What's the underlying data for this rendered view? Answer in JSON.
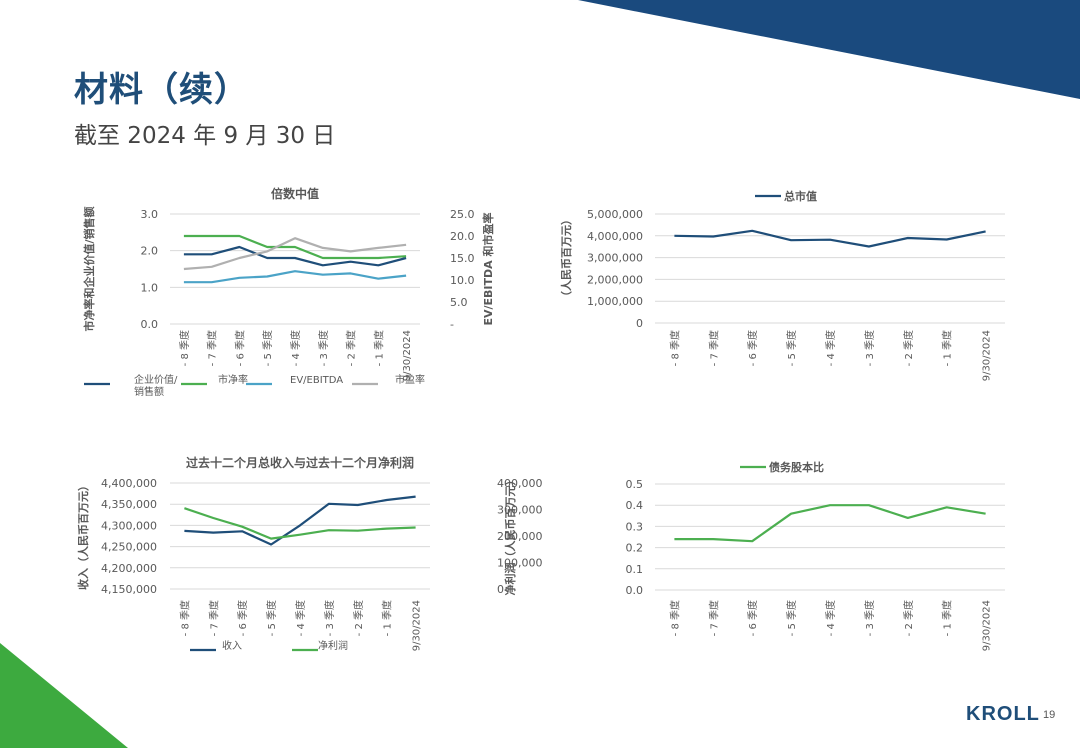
{
  "page": {
    "title": "材料（续）",
    "subtitle": "截至 2024 年 9 月 30 日",
    "logo": "KROLL",
    "page_number": "19",
    "colors": {
      "navy": "#1f4e79",
      "green": "#4caf50",
      "light_blue": "#4ba3c7",
      "gray": "#b0b0b0",
      "brand_blue": "#1a4a7e",
      "brand_green": "#3daa3f"
    }
  },
  "chart_data": [
    {
      "type": "line",
      "title": "倍数中值",
      "categories": [
        "- 8 季度",
        "- 7 季度",
        "- 6 季度",
        "- 5 季度",
        "- 4 季度",
        "- 3 季度",
        "- 2 季度",
        "- 1 季度",
        "9/30/2024"
      ],
      "ylabel": "市净率和企业价值/销售额",
      "y2label": "EV/EBITDA 和市盈率",
      "ylim": [
        0,
        3
      ],
      "yticks": [
        "0.0",
        "1.0",
        "2.0",
        "3.0"
      ],
      "y2lim": [
        0,
        25
      ],
      "y2ticks": [
        "-",
        "5.0",
        "10.0",
        "15.0",
        "20.0",
        "25.0"
      ],
      "legend_position": "bottom",
      "series": [
        {
          "name": "企业价值/\n销售额",
          "axis": "left",
          "color": "#1f4e79",
          "values": [
            1.9,
            1.9,
            2.1,
            1.8,
            1.8,
            1.6,
            1.7,
            1.6,
            1.8
          ]
        },
        {
          "name": "市净率",
          "axis": "left",
          "color": "#4caf50",
          "values": [
            2.4,
            2.4,
            2.4,
            2.1,
            2.1,
            1.8,
            1.8,
            1.8,
            1.85
          ]
        },
        {
          "name": "EV/EBITDA",
          "axis": "right",
          "color": "#4ba3c7",
          "values": [
            9.5,
            9.5,
            10.5,
            10.8,
            12.0,
            11.2,
            11.5,
            10.3,
            11.0
          ]
        },
        {
          "name": "市盈率",
          "axis": "right",
          "color": "#b0b0b0",
          "values": [
            12.5,
            13.0,
            15.0,
            16.5,
            19.5,
            17.3,
            16.5,
            17.3,
            18.0
          ]
        }
      ]
    },
    {
      "type": "line",
      "title": "总市值",
      "categories": [
        "- 8 季度",
        "- 7 季度",
        "- 6 季度",
        "- 5 季度",
        "- 4 季度",
        "- 3 季度",
        "- 2 季度",
        "- 1 季度",
        "9/30/2024"
      ],
      "ylabel": "（人民币百万元）",
      "ylim": [
        0,
        5000000
      ],
      "yticks": [
        "0",
        "1,000,000",
        "2,000,000",
        "3,000,000",
        "4,000,000",
        "5,000,000"
      ],
      "legend_position": "top",
      "series": [
        {
          "name": "总市值",
          "axis": "left",
          "color": "#1f4e79",
          "values": [
            4000000,
            3970000,
            4230000,
            3800000,
            3820000,
            3510000,
            3900000,
            3830000,
            4200000
          ]
        }
      ]
    },
    {
      "type": "line",
      "title": "过去十二个月总收入与过去十二个月净利润",
      "categories": [
        "- 8 季度",
        "- 7 季度",
        "- 6 季度",
        "- 5 季度",
        "- 4 季度",
        "- 3 季度",
        "- 2 季度",
        "- 1 季度",
        "9/30/2024"
      ],
      "ylabel": "收入（人民币百万元）",
      "y2label": "净利润（人民币百万元）",
      "ylim": [
        4150000,
        4400000
      ],
      "yticks": [
        "4,150,000",
        "4,200,000",
        "4,250,000",
        "4,300,000",
        "4,350,000",
        "4,400,000"
      ],
      "y2lim": [
        0,
        400000
      ],
      "y2ticks": [
        "0",
        "100,000",
        "200,000",
        "300,000",
        "400,000"
      ],
      "legend_position": "bottom",
      "series": [
        {
          "name": "收入",
          "axis": "left",
          "color": "#1f4e79",
          "values": [
            4287000,
            4283000,
            4286000,
            4255000,
            4300000,
            4351000,
            4348000,
            4360000,
            4368000
          ]
        },
        {
          "name": "净利润",
          "axis": "right",
          "color": "#4caf50",
          "values": [
            305000,
            268000,
            235000,
            190000,
            205000,
            222000,
            220000,
            228000,
            232000
          ]
        }
      ]
    },
    {
      "type": "line",
      "title": "债务股本比",
      "categories": [
        "- 8 季度",
        "- 7 季度",
        "- 6 季度",
        "- 5 季度",
        "- 4 季度",
        "- 3 季度",
        "- 2 季度",
        "- 1 季度",
        "9/30/2024"
      ],
      "ylim": [
        0,
        0.5
      ],
      "yticks": [
        "0.0",
        "0.1",
        "0.2",
        "0.3",
        "0.4",
        "0.5"
      ],
      "legend_position": "top",
      "series": [
        {
          "name": "债务股本比",
          "axis": "left",
          "color": "#4caf50",
          "values": [
            0.24,
            0.24,
            0.23,
            0.36,
            0.4,
            0.4,
            0.34,
            0.39,
            0.36
          ]
        }
      ]
    }
  ]
}
